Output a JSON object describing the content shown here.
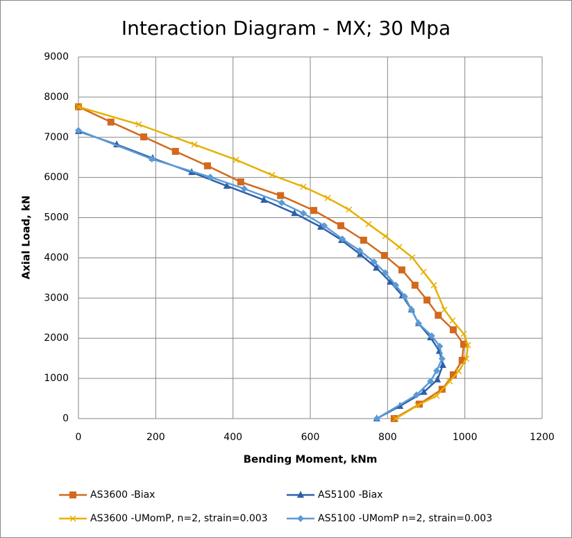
{
  "chart_data": {
    "type": "line",
    "title": "Interaction Diagram - MX; 30 Mpa",
    "x_label": "Bending Moment, kNm",
    "y_label": "Axial Load, kN",
    "xlim": [
      0,
      1200
    ],
    "xticks": [
      0,
      200,
      400,
      600,
      800,
      1000,
      1200
    ],
    "ylim": [
      0,
      9000
    ],
    "yticks": [
      0,
      1000,
      2000,
      3000,
      4000,
      5000,
      6000,
      7000,
      8000,
      9000
    ],
    "grid": true,
    "series": [
      {
        "name": "AS3600 -Biax",
        "color": "#d2691e",
        "marker": "square",
        "x": [
          0,
          84,
          169,
          251,
          334,
          420,
          523,
          609,
          679,
          738,
          792,
          837,
          871,
          902,
          931,
          970,
          997,
          993,
          970,
          941,
          882,
          817
        ],
        "values": [
          7760,
          7380,
          7010,
          6650,
          6290,
          5890,
          5550,
          5180,
          4800,
          4440,
          4060,
          3700,
          3320,
          2950,
          2570,
          2210,
          1850,
          1450,
          1090,
          730,
          360,
          0
        ]
      },
      {
        "name": "AS5100 -Biax",
        "color": "#2e5fa8",
        "marker": "triangle",
        "x": [
          0,
          99,
          192,
          293,
          384,
          480,
          559,
          627,
          681,
          729,
          771,
          807,
          838,
          862,
          880,
          911,
          934,
          943,
          929,
          894,
          832,
          772
        ],
        "values": [
          7150,
          6820,
          6480,
          6130,
          5790,
          5440,
          5110,
          4770,
          4440,
          4090,
          3750,
          3400,
          3060,
          2710,
          2370,
          2020,
          1680,
          1330,
          970,
          660,
          310,
          0
        ]
      },
      {
        "name": "AS3600 -UMomP, n=2, strain=0.003",
        "color": "#e6b000",
        "marker": "cross",
        "x": [
          0,
          156,
          300,
          408,
          501,
          582,
          645,
          700,
          751,
          794,
          830,
          864,
          893,
          920,
          947,
          968,
          997,
          1008,
          1004,
          984,
          961,
          927,
          878,
          821
        ],
        "values": [
          7760,
          7320,
          6820,
          6440,
          6060,
          5770,
          5490,
          5200,
          4840,
          4540,
          4270,
          4010,
          3650,
          3320,
          2710,
          2440,
          2110,
          1830,
          1490,
          1180,
          930,
          570,
          330,
          0
        ]
      },
      {
        "name": "AS5100 -UMomP n=2, strain=0.003",
        "color": "#5b9bd5",
        "marker": "diamond",
        "x": [
          0,
          190,
          341,
          429,
          526,
          582,
          636,
          683,
          728,
          765,
          794,
          821,
          844,
          862,
          880,
          914,
          935,
          941,
          927,
          911,
          875,
          772
        ],
        "values": [
          7170,
          6460,
          6010,
          5720,
          5370,
          5110,
          4800,
          4470,
          4180,
          3900,
          3630,
          3320,
          3040,
          2710,
          2370,
          2060,
          1800,
          1490,
          1190,
          930,
          590,
          0
        ]
      }
    ]
  }
}
